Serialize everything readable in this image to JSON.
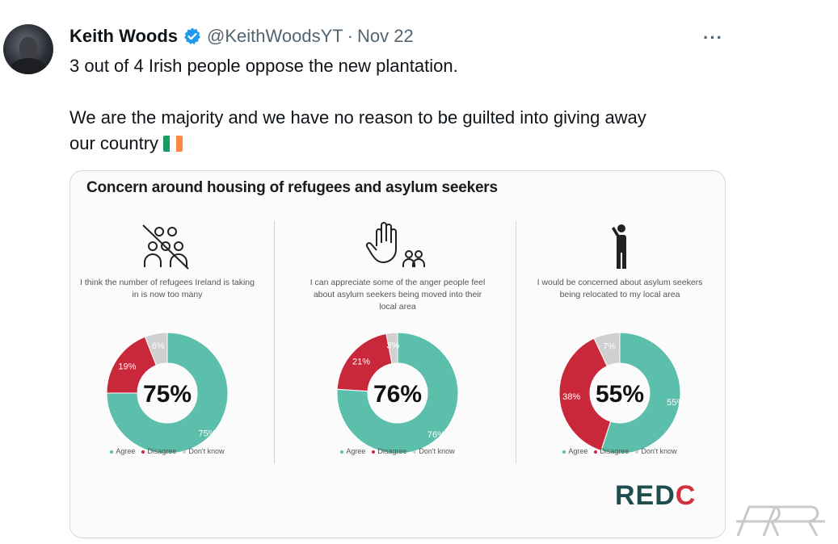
{
  "tweet": {
    "author_name": "Keith Woods",
    "handle": "@KeithWoodsYT",
    "separator": "·",
    "date": "Nov 22",
    "more_label": "···",
    "text_line1": "3 out of 4 Irish people oppose the new plantation.",
    "text_line2a": "We are the majority and we have no reason to be guilted into giving away",
    "text_line2b": "our country",
    "flag_emoji": "ireland-flag-icon"
  },
  "card": {
    "title": "Concern around housing of refugees and asylum seekers",
    "logo_main": "RED",
    "logo_accent": "C",
    "legend": {
      "agree": "Agree",
      "disagree": "Disagree",
      "dont_know": "Don't know"
    },
    "panels": [
      {
        "icon": "no-people-icon",
        "desc": "I think the number of refugees Ireland is taking in is now too many",
        "center": "75%",
        "agree_label": "75%",
        "disagree_label": "19%",
        "dk_label": "6%"
      },
      {
        "icon": "hand-people-icon",
        "desc": "I can appreciate some of the anger people feel about asylum seekers being moved into their local area",
        "center": "76%",
        "agree_label": "76%",
        "disagree_label": "21%",
        "dk_label": "3%"
      },
      {
        "icon": "worried-person-icon",
        "desc": "I would be concerned about asylum seekers being relocated to my local area",
        "center": "55%",
        "agree_label": "55%",
        "disagree_label": "38%",
        "dk_label": "7%"
      }
    ]
  },
  "colors": {
    "agree": "#5cbfab",
    "disagree": "#c9283a",
    "dont_know": "#d0d0d0"
  },
  "chart_data": [
    {
      "type": "pie",
      "categories": [
        "Agree",
        "Disagree",
        "Don't know"
      ],
      "values": [
        75,
        19,
        6
      ]
    },
    {
      "type": "pie",
      "categories": [
        "Agree",
        "Disagree",
        "Don't know"
      ],
      "values": [
        76,
        21,
        3
      ]
    },
    {
      "type": "pie",
      "categories": [
        "Agree",
        "Disagree",
        "Don't know"
      ],
      "values": [
        55,
        38,
        7
      ]
    }
  ]
}
